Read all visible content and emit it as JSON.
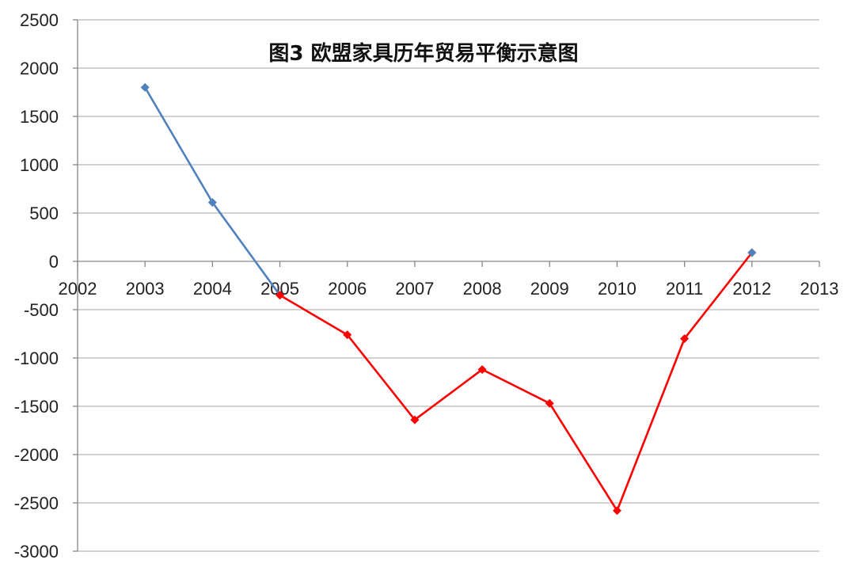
{
  "chart_data": {
    "type": "line",
    "title": "图3 欧盟家具历年贸易平衡示意图",
    "xlabel": "",
    "ylabel": "",
    "xlim": [
      2002,
      2013
    ],
    "ylim": [
      -3000,
      2500
    ],
    "x_ticks": [
      2002,
      2003,
      2004,
      2005,
      2006,
      2007,
      2008,
      2009,
      2010,
      2011,
      2012,
      2013
    ],
    "y_ticks": [
      2500,
      2000,
      1500,
      1000,
      500,
      0,
      -500,
      -1000,
      -1500,
      -2000,
      -2500,
      -3000
    ],
    "grid": true,
    "legend": "none",
    "series": [
      {
        "color": "#4f81bd",
        "marker": "diamond",
        "points": [
          {
            "x": 2003,
            "y": 1800
          },
          {
            "x": 2004,
            "y": 610
          },
          {
            "x": 2005,
            "y": -350
          }
        ]
      },
      {
        "color": "#ff0000",
        "marker": "diamond",
        "points": [
          {
            "x": 2005,
            "y": -350
          },
          {
            "x": 2006,
            "y": -760
          },
          {
            "x": 2007,
            "y": -1640
          },
          {
            "x": 2008,
            "y": -1120
          },
          {
            "x": 2009,
            "y": -1470
          },
          {
            "x": 2010,
            "y": -2580
          },
          {
            "x": 2011,
            "y": -800
          },
          {
            "x": 2012,
            "y": 90
          }
        ]
      },
      {
        "color": "#4f81bd",
        "marker": "diamond",
        "points": [
          {
            "x": 2012,
            "y": 90
          }
        ]
      }
    ]
  }
}
